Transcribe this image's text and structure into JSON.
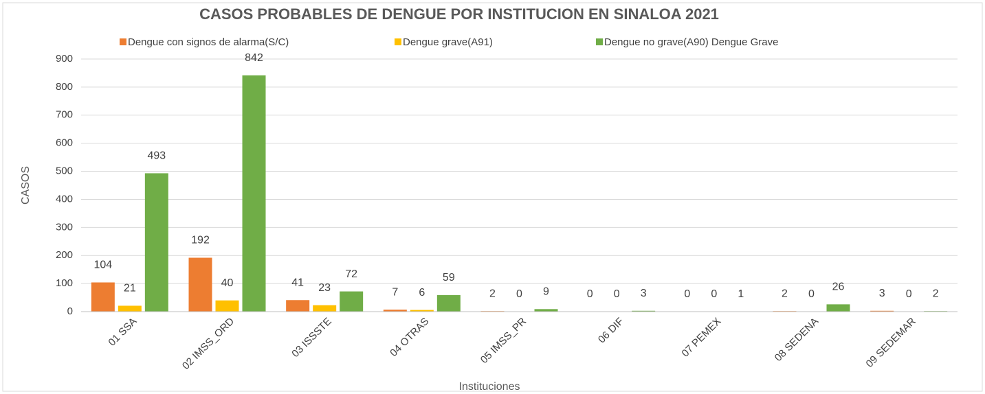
{
  "chart_data": {
    "type": "bar",
    "title": "CASOS PROBABLES DE DENGUE POR INSTITUCION EN SINALOA 2021",
    "x_label": "Instituciones",
    "y_label": "CASOS",
    "categories": [
      "01 SSA",
      "02 IMSS_ORD",
      "03 ISSSTE",
      "04 OTRAS",
      "05 IMSS_PR",
      "06 DIF",
      "07 PEMEX",
      "08 SEDENA",
      "09 SEDEMAR"
    ],
    "series": [
      {
        "name": "Dengue con signos de alarma(S/C)",
        "color": "#ed7d31",
        "values": [
          104,
          192,
          41,
          7,
          2,
          0,
          0,
          2,
          3
        ]
      },
      {
        "name": "Dengue grave(A91)",
        "color": "#ffc000",
        "values": [
          21,
          40,
          23,
          6,
          0,
          0,
          0,
          0,
          0
        ]
      },
      {
        "name": "Dengue no grave(A90) Dengue Grave",
        "color": "#70ad47",
        "values": [
          493,
          842,
          72,
          59,
          9,
          3,
          1,
          26,
          2
        ]
      }
    ],
    "ylim": [
      0,
      900
    ],
    "yticks": [
      0,
      100,
      200,
      300,
      400,
      500,
      600,
      700,
      800,
      900
    ],
    "grid": true,
    "legend": "top"
  }
}
